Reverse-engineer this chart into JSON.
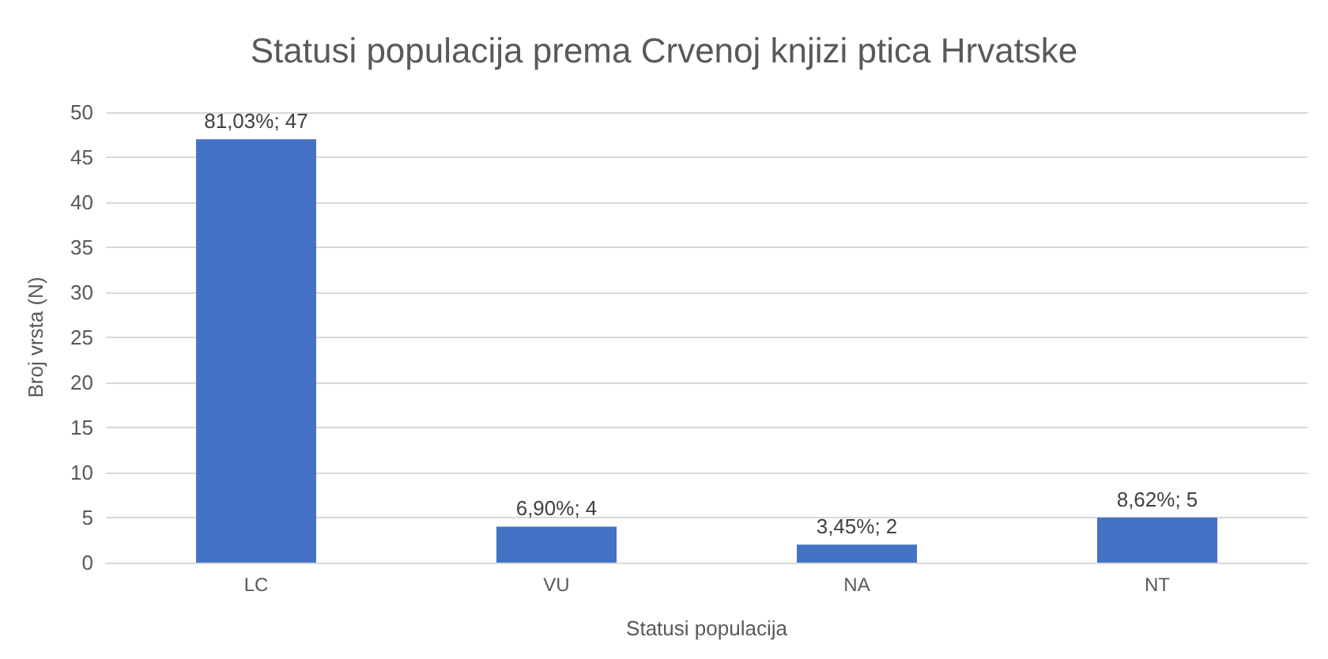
{
  "chart_data": {
    "type": "bar",
    "title": "Statusi populacija prema Crvenoj knjizi ptica Hrvatske",
    "xlabel": "Statusi populacija",
    "ylabel": "Broj vrsta (N)",
    "categories": [
      "LC",
      "VU",
      "NA",
      "NT"
    ],
    "values": [
      47,
      4,
      2,
      5
    ],
    "value_labels": [
      "81,03%; 47",
      "6,90%; 4",
      "3,45%; 2",
      "8,62%; 5"
    ],
    "color": "#4472c4",
    "ylim": [
      0,
      50
    ],
    "yticks": [
      0,
      5,
      10,
      15,
      20,
      25,
      30,
      35,
      40,
      45,
      50
    ],
    "grid": "y"
  }
}
